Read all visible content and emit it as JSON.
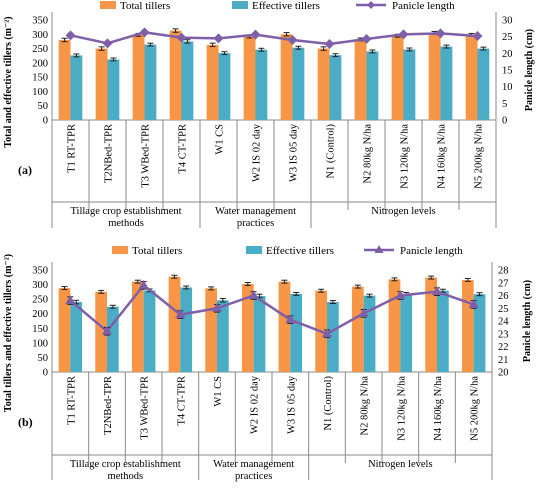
{
  "series_colors": {
    "total_tillers": "#f79646",
    "effective_tillers": "#4bacc6",
    "panicle_length": "#7f5fa8"
  },
  "chart_data": [
    {
      "type": "bar",
      "panel_label": "(a)",
      "legend_position": "top",
      "categories": [
        "T1 RT-TPR",
        "T2NBed-TPR",
        "T3 WBed-TPR",
        "T4 CT-TPR",
        "W1 CS",
        "W2 IS 02 day",
        "W3 IS 05 day",
        "N1 (Control)",
        "N2 80kg N/ha",
        "N3 120kg N/ha",
        "N4 160kg N/ha",
        "N5 200kg N/ha"
      ],
      "groups": [
        {
          "label": "Tillage crop establishment methods",
          "start": 0,
          "end": 3
        },
        {
          "label": "Water management practices",
          "start": 4,
          "end": 6
        },
        {
          "label": "Nitrogen levels",
          "start": 7,
          "end": 11
        }
      ],
      "ylabel": "Total and effective tillers (m⁻²)",
      "y2label": "Panicle length (cm)",
      "ylim": [
        0,
        350
      ],
      "yticks": [
        0,
        50,
        100,
        150,
        200,
        250,
        300,
        350
      ],
      "y2lim": [
        0,
        30
      ],
      "y2ticks": [
        0,
        5,
        10,
        15,
        20,
        25,
        30
      ],
      "series": [
        {
          "name": "Total tillers",
          "kind": "bar",
          "axis": "left",
          "values": [
            280,
            250,
            298,
            313,
            263,
            292,
            300,
            250,
            282,
            295,
            305,
            298
          ],
          "errors": [
            6,
            6,
            5,
            6,
            6,
            5,
            6,
            6,
            5,
            5,
            5,
            5
          ]
        },
        {
          "name": "Effective tillers",
          "kind": "bar",
          "axis": "left",
          "values": [
            226,
            212,
            264,
            275,
            234,
            246,
            253,
            227,
            240,
            247,
            257,
            250
          ],
          "errors": [
            5,
            5,
            5,
            6,
            5,
            5,
            5,
            5,
            5,
            5,
            5,
            5
          ]
        },
        {
          "name": "Panicle length",
          "kind": "line",
          "axis": "right",
          "values": [
            25.4,
            23.0,
            26.3,
            24.7,
            24.5,
            25.6,
            24.0,
            22.8,
            24.3,
            25.7,
            26.0,
            25.2
          ],
          "errors": [
            0,
            0,
            0,
            0,
            0,
            0,
            0,
            0,
            0,
            0,
            0,
            0
          ]
        }
      ]
    },
    {
      "type": "bar",
      "panel_label": "(b)",
      "legend_position": "top",
      "categories": [
        "T1 RT-TPR",
        "T2NBed-TPR",
        "T3 WBed-TPR",
        "T4 CT-TPR",
        "W1 CS",
        "W2 IS 02 day",
        "W3 IS 05 day",
        "N1 (Control)",
        "N2 80kg N/ha",
        "N3 120kg N/ha",
        "N4 160kg N/ha",
        "N5 200kg N/ha"
      ],
      "groups": [
        {
          "label": "Tillage crop establishment methods",
          "start": 0,
          "end": 3
        },
        {
          "label": "Water management practices",
          "start": 4,
          "end": 6
        },
        {
          "label": "Nitrogen levels",
          "start": 7,
          "end": 11
        }
      ],
      "ylabel": "Total tillers and effective tillers (m⁻²)",
      "y2label": "Panicle length (cm)",
      "ylim": [
        0,
        350
      ],
      "yticks": [
        0,
        50,
        100,
        150,
        200,
        250,
        300,
        350
      ],
      "y2lim": [
        20,
        28
      ],
      "y2ticks": [
        20,
        21,
        22,
        23,
        24,
        25,
        26,
        27,
        28
      ],
      "series": [
        {
          "name": "Total tillers",
          "kind": "bar",
          "axis": "left",
          "values": [
            288,
            275,
            310,
            327,
            287,
            302,
            310,
            279,
            293,
            318,
            324,
            316
          ],
          "errors": [
            5,
            5,
            5,
            5,
            5,
            5,
            5,
            5,
            5,
            5,
            5,
            5
          ]
        },
        {
          "name": "Effective tillers",
          "kind": "bar",
          "axis": "left",
          "values": [
            240,
            224,
            280,
            290,
            246,
            261,
            268,
            240,
            262,
            268,
            279,
            267
          ],
          "errors": [
            6,
            5,
            5,
            5,
            6,
            6,
            5,
            5,
            5,
            5,
            5,
            5
          ]
        },
        {
          "name": "Panicle length",
          "kind": "line",
          "axis": "right",
          "values": [
            25.6,
            23.2,
            26.8,
            24.5,
            25.0,
            26.0,
            24.1,
            23.0,
            24.6,
            26.0,
            26.3,
            25.3
          ],
          "errors": [
            0.3,
            0.3,
            0.3,
            0.3,
            0.3,
            0.3,
            0.3,
            0.3,
            0.3,
            0.3,
            0.3,
            0.3
          ]
        }
      ]
    }
  ]
}
